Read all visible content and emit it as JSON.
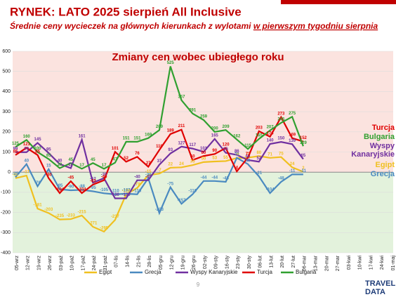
{
  "header": {
    "title": "RYNEK: LATO 2025 sierpień All Inclusive",
    "subtitle_parts": [
      "Średnie ceny wycieczek na głównych kierunkach z wylotami ",
      "w pierwszym tygodniu sierpnia"
    ]
  },
  "page_number": "9",
  "logo": [
    "TRAVEL",
    "DATA"
  ],
  "chart_data": {
    "type": "line",
    "title": "Zmiany cen wobec ubiegłego roku",
    "categories": [
      "05-wrz",
      "12-wrz",
      "19-wrz",
      "26-wrz",
      "03-paź",
      "10-paź",
      "17-paź",
      "24-paź",
      "31-paź",
      "07-lis",
      "14-lis",
      "21-lis",
      "28-lis",
      "05-gru",
      "12-gru",
      "19-gru",
      "26-gru",
      "02-sty",
      "09-sty",
      "16-sty",
      "23-sty",
      "30-sty",
      "06-lut",
      "13-lut",
      "20-lut",
      "27-lut",
      "06-mar",
      "13-mar",
      "20-mar",
      "27-mar",
      "03-kwi",
      "10-kwi",
      "17-kwi",
      "24-kwi",
      "01-maj"
    ],
    "ylim": [
      -400,
      600
    ],
    "yticks": [
      -400,
      -300,
      -200,
      -100,
      0,
      100,
      200,
      300,
      400,
      500,
      600
    ],
    "series": [
      {
        "name": "Egipt",
        "color": "#f0c020",
        "values": [
          -30,
          -17,
          -181,
          -203,
          -235,
          -233,
          -215,
          -271,
          -295,
          -237,
          -110,
          -78,
          -15,
          -7,
          22,
          24,
          35,
          50,
          53,
          55,
          70,
          72,
          80,
          71,
          75,
          24,
          2,
          null,
          null,
          null,
          null,
          null,
          null,
          null,
          null
        ]
      },
      {
        "name": "Grecja",
        "color": "#4a8ac0",
        "values": [
          -25,
          40,
          -70,
          15,
          -85,
          -90,
          -88,
          -95,
          -105,
          -110,
          -107,
          -110,
          -30,
          -203,
          -75,
          -157,
          -110,
          -44,
          -44,
          -48,
          71,
          40,
          -21,
          -104,
          -48,
          -11,
          -11,
          null,
          null,
          null,
          null,
          null,
          null,
          null,
          null
        ]
      },
      {
        "name": "Wyspy Kanaryjskie",
        "color": "#7030a0",
        "values": [
          99,
          99,
          145,
          95,
          40,
          20,
          161,
          -52,
          -30,
          -130,
          -130,
          -40,
          -40,
          37,
          93,
          127,
          117,
          101,
          165,
          96,
          86,
          60,
          52,
          140,
          150,
          139,
          65,
          null,
          null,
          null,
          null,
          null,
          null,
          null,
          null
        ]
      },
      {
        "name": "Turcja",
        "color": "#e00000",
        "values": [
          85,
          121,
          85,
          -30,
          -104,
          -45,
          -104,
          -62,
          -40,
          101,
          52,
          76,
          27,
          110,
          189,
          211,
          60,
          80,
          90,
          120,
          4,
          72,
          203,
          176,
          273,
          169,
          152,
          null,
          null,
          null,
          null,
          null,
          null,
          null,
          null
        ]
      },
      {
        "name": "Bulgaria",
        "color": "#30a030",
        "values": [
          125,
          160,
          100,
          65,
          20,
          45,
          17,
          45,
          17,
          47,
          151,
          151,
          169,
          209,
          525,
          357,
          291,
          259,
          200,
          209,
          162,
          115,
          165,
          207,
          245,
          275,
          129,
          null,
          null,
          null,
          null,
          null,
          null,
          null,
          null
        ]
      }
    ]
  }
}
